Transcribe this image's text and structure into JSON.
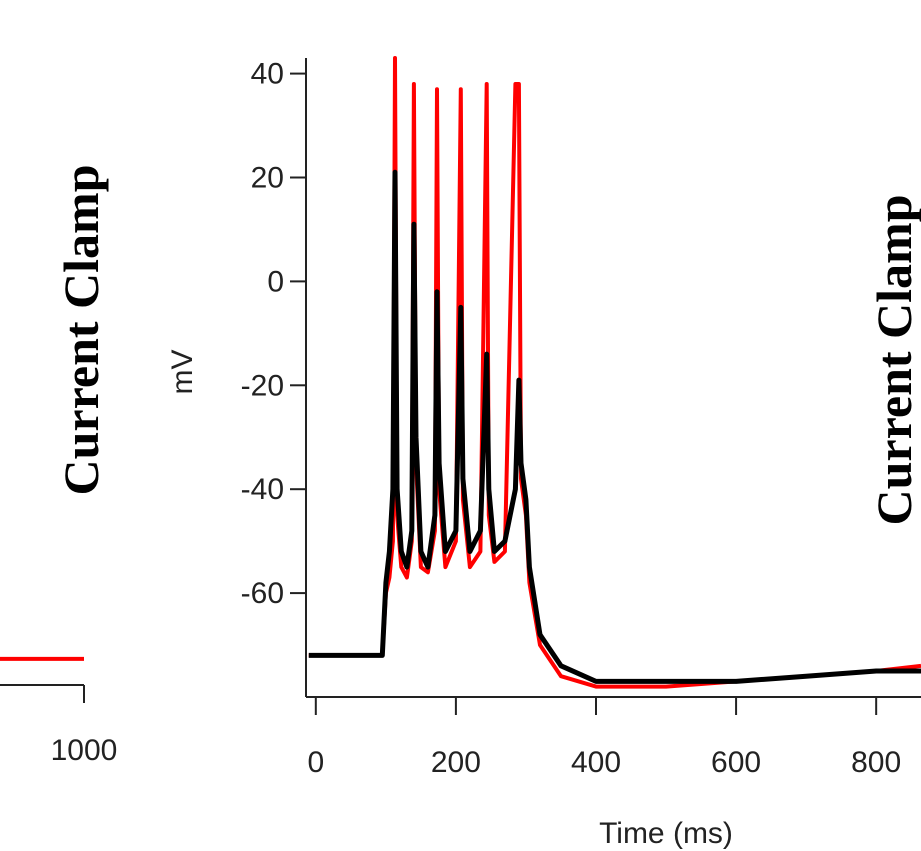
{
  "panel_labels": [
    "Current Clamp",
    "Current Clamp"
  ],
  "chart_data": [
    {
      "type": "line",
      "xlim": [
        880,
        1000
      ],
      "xticks": [
        1000
      ],
      "ylim": [
        -77,
        43
      ],
      "x": [
        880,
        1000
      ],
      "series": [
        {
          "color": "#ff0000",
          "values": [
            -72,
            -72
          ]
        }
      ]
    },
    {
      "type": "line",
      "ylabel": "mV",
      "xlabel": "Time (ms)",
      "xlim": [
        -14,
        864
      ],
      "xticks": [
        0,
        200,
        400,
        600,
        800
      ],
      "ylim": [
        -80,
        43
      ],
      "yticks": [
        40,
        20,
        0,
        -20,
        -40,
        -60
      ],
      "x": [
        -10,
        0,
        50,
        95,
        100,
        105,
        110,
        113,
        116,
        122,
        130,
        137,
        140,
        143,
        150,
        160,
        170,
        173,
        176,
        185,
        200,
        207,
        210,
        220,
        235,
        244,
        247,
        255,
        270,
        285,
        290,
        293,
        300,
        305,
        320,
        350,
        400,
        500,
        600,
        700,
        800,
        864
      ],
      "series": [
        {
          "color": "#ff0000",
          "values": [
            -72,
            -72,
            -72,
            -72,
            -60,
            -57,
            -50,
            43,
            -45,
            -55,
            -57,
            -50,
            38,
            -35,
            -55,
            -56,
            -48,
            37,
            -40,
            -55,
            -50,
            37,
            -42,
            -55,
            -52,
            38,
            -45,
            -54,
            -52,
            38,
            38,
            -38,
            -45,
            -58,
            -70,
            -76,
            -78,
            -78,
            -77,
            -76,
            -75,
            -74
          ]
        },
        {
          "color": "#000000",
          "values": [
            -72,
            -72,
            -72,
            -72,
            -58,
            -52,
            -40,
            21,
            -40,
            -52,
            -55,
            -48,
            11,
            -30,
            -52,
            -55,
            -45,
            -2,
            -35,
            -52,
            -48,
            -5,
            -38,
            -52,
            -48,
            -14,
            -40,
            -52,
            -50,
            -40,
            -19,
            -35,
            -42,
            -55,
            -68,
            -74,
            -77,
            -77,
            -77,
            -76,
            -75,
            -75
          ]
        }
      ]
    }
  ]
}
